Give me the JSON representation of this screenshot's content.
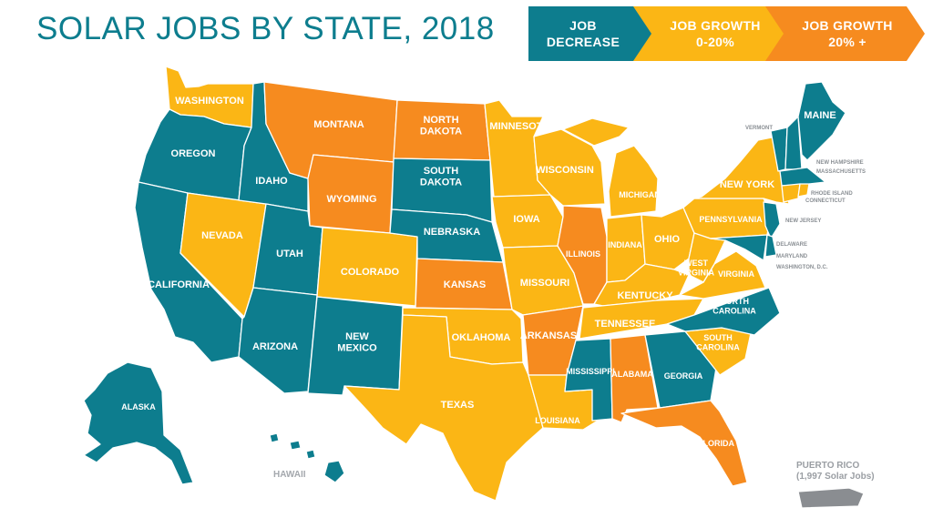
{
  "title": "SOLAR JOBS BY STATE, 2018",
  "colors": {
    "decrease": "#0d7d8e",
    "growth_0_20": "#fbb615",
    "growth_20_plus": "#f68b1f",
    "territory": "#8a8d91"
  },
  "legend": [
    {
      "key": "decrease",
      "line1": "JOB",
      "line2": "DECREASE"
    },
    {
      "key": "growth_0_20",
      "line1": "JOB GROWTH",
      "line2": "0-20%"
    },
    {
      "key": "growth_20_plus",
      "line1": "JOB GROWTH",
      "line2": "20% +"
    }
  ],
  "states": {
    "washington": {
      "name": "WASHINGTON",
      "category": "growth_0_20"
    },
    "oregon": {
      "name": "OREGON",
      "category": "decrease"
    },
    "california": {
      "name": "CALIFORNIA",
      "category": "decrease"
    },
    "nevada": {
      "name": "NEVADA",
      "category": "growth_0_20"
    },
    "idaho": {
      "name": "IDAHO",
      "category": "decrease"
    },
    "montana": {
      "name": "MONTANA",
      "category": "growth_20_plus"
    },
    "wyoming": {
      "name": "WYOMING",
      "category": "growth_20_plus"
    },
    "utah": {
      "name": "UTAH",
      "category": "decrease"
    },
    "arizona": {
      "name": "ARIZONA",
      "category": "decrease"
    },
    "colorado": {
      "name": "COLORADO",
      "category": "growth_0_20"
    },
    "new_mexico": {
      "name": "NEW MEXICO",
      "category": "decrease"
    },
    "north_dakota": {
      "name": "NORTH DAKOTA",
      "category": "growth_20_plus"
    },
    "south_dakota": {
      "name": "SOUTH DAKOTA",
      "category": "decrease"
    },
    "nebraska": {
      "name": "NEBRASKA",
      "category": "decrease"
    },
    "kansas": {
      "name": "KANSAS",
      "category": "growth_20_plus"
    },
    "oklahoma": {
      "name": "OKLAHOMA",
      "category": "growth_0_20"
    },
    "texas": {
      "name": "TEXAS",
      "category": "growth_0_20"
    },
    "minnesota": {
      "name": "MINNESOTA",
      "category": "growth_0_20"
    },
    "iowa": {
      "name": "IOWA",
      "category": "growth_0_20"
    },
    "missouri": {
      "name": "MISSOURI",
      "category": "growth_0_20"
    },
    "arkansas": {
      "name": "ARKANSAS",
      "category": "growth_20_plus"
    },
    "louisiana": {
      "name": "LOUISIANA",
      "category": "growth_0_20"
    },
    "wisconsin": {
      "name": "WISCONSIN",
      "category": "growth_0_20"
    },
    "illinois": {
      "name": "ILLINOIS",
      "category": "growth_20_plus"
    },
    "mississippi": {
      "name": "MISSISSIPPI",
      "category": "decrease"
    },
    "michigan": {
      "name": "MICHIGAN",
      "category": "growth_0_20"
    },
    "indiana": {
      "name": "INDIANA",
      "category": "growth_0_20"
    },
    "ohio": {
      "name": "OHIO",
      "category": "growth_0_20"
    },
    "kentucky": {
      "name": "KENTUCKY",
      "category": "growth_0_20"
    },
    "tennessee": {
      "name": "TENNESSEE",
      "category": "growth_0_20"
    },
    "alabama": {
      "name": "ALABAMA",
      "category": "growth_20_plus"
    },
    "georgia": {
      "name": "GEORGIA",
      "category": "decrease"
    },
    "florida": {
      "name": "FLORIDA",
      "category": "growth_20_plus"
    },
    "south_carolina": {
      "name": "SOUTH CAROLINA",
      "category": "growth_0_20"
    },
    "north_carolina": {
      "name": "NORTH CAROLINA",
      "category": "decrease"
    },
    "virginia": {
      "name": "VIRGINIA",
      "category": "growth_0_20"
    },
    "west_virginia": {
      "name": "WEST VIRGINIA",
      "category": "growth_0_20"
    },
    "pennsylvania": {
      "name": "PENNSYLVANIA",
      "category": "growth_0_20"
    },
    "new_york": {
      "name": "NEW YORK",
      "category": "growth_0_20"
    },
    "maine": {
      "name": "MAINE",
      "category": "decrease"
    },
    "vermont": {
      "name": "VERMONT",
      "category": "decrease"
    },
    "new_hampshire": {
      "name": "NEW HAMPSHIRE",
      "category": "decrease"
    },
    "massachusetts": {
      "name": "MASSACHUSETTS",
      "category": "decrease"
    },
    "rhode_island": {
      "name": "RHODE ISLAND",
      "category": "growth_0_20"
    },
    "connecticut": {
      "name": "CONNECTICUT",
      "category": "growth_0_20"
    },
    "new_jersey": {
      "name": "NEW JERSEY",
      "category": "decrease"
    },
    "delaware": {
      "name": "DELAWARE",
      "category": "decrease"
    },
    "maryland": {
      "name": "MARYLAND",
      "category": "decrease"
    },
    "washington_dc": {
      "name": "WASHINGTON, D.C.",
      "category": "decrease"
    },
    "alaska": {
      "name": "ALASKA",
      "category": "decrease"
    },
    "hawaii": {
      "name": "HAWAII",
      "category": "decrease"
    }
  },
  "puerto_rico": {
    "line1": "PUERTO RICO",
    "line2": "(1,997 Solar Jobs)"
  }
}
